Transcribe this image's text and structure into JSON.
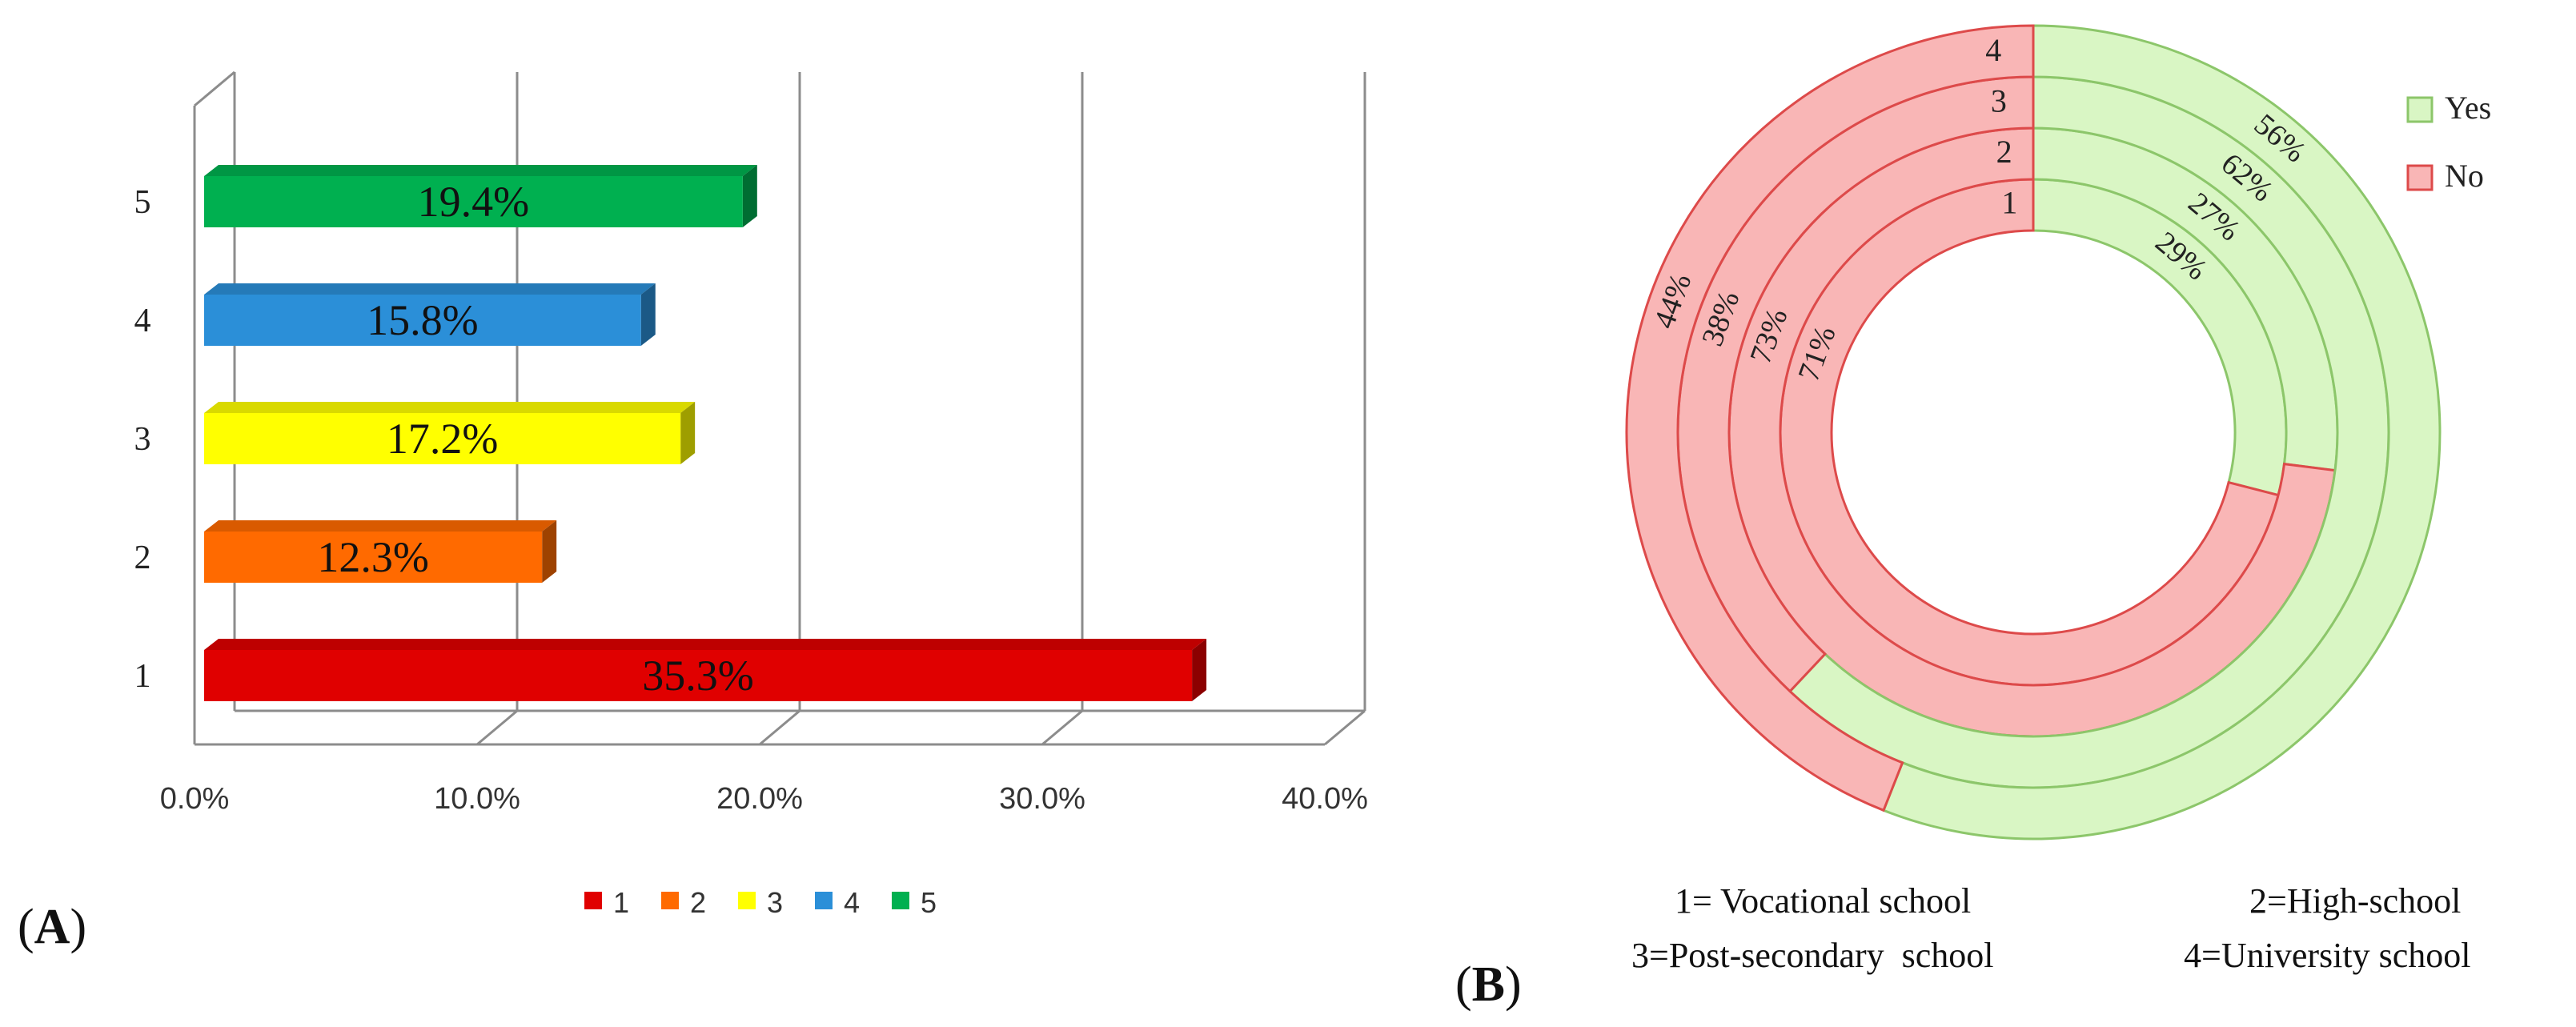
{
  "panel_a": {
    "letter": "A",
    "chart_data": {
      "type": "bar",
      "orientation": "horizontal",
      "categories": [
        "1",
        "2",
        "3",
        "4",
        "5"
      ],
      "values": [
        35.3,
        12.3,
        17.2,
        15.8,
        19.4
      ],
      "value_labels": [
        "35.3%",
        "12.3%",
        "17.2%",
        "15.8%",
        "19.4%"
      ],
      "colors": [
        "#e00000",
        "#ff6a00",
        "#ffff00",
        "#2b8fd8",
        "#00b050"
      ],
      "xlim": [
        0,
        40
      ],
      "xticks": [
        "0.0%",
        "10.0%",
        "20.0%",
        "30.0%",
        "40.0%"
      ],
      "grid": true,
      "legend": {
        "placement": "bottom",
        "entries": [
          "1",
          "2",
          "3",
          "4",
          "5"
        ]
      }
    }
  },
  "panel_b": {
    "letter": "B",
    "chart_data": {
      "type": "donut",
      "rings": [
        {
          "name": "1",
          "yes": 29,
          "no": 71,
          "yes_label": "29%",
          "no_label": "71%"
        },
        {
          "name": "2",
          "yes": 27,
          "no": 73,
          "yes_label": "27%",
          "no_label": "73%"
        },
        {
          "name": "3",
          "yes": 62,
          "no": 38,
          "yes_label": "62%",
          "no_label": "38%"
        },
        {
          "name": "4",
          "yes": 56,
          "no": 44,
          "yes_label": "56%",
          "no_label": "44%"
        }
      ],
      "colors": {
        "yes": "#d9f6c4",
        "no": "#f9b6b6",
        "yes_edge": "#8cc66a",
        "no_edge": "#dd4a4a"
      },
      "legend": {
        "placement": "top-right",
        "entries": [
          "Yes",
          "No"
        ]
      },
      "notes": [
        "1= Vocational school",
        "2=High-school",
        "3=Post-secondary  school",
        "4=University school"
      ]
    }
  }
}
